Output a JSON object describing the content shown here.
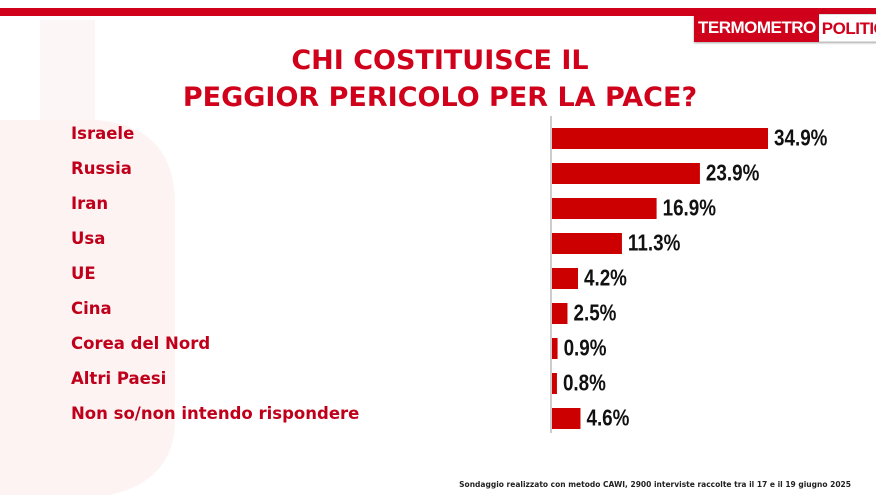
{
  "brand": {
    "part1": "TERMOMETRO",
    "part2": "POLITICO",
    "red": "#d0021b"
  },
  "chart_data": {
    "type": "bar",
    "orientation": "horizontal",
    "title_lines": [
      "CHI COSTITUISCE IL",
      "PEGGIOR PERICOLO PER LA PACE?"
    ],
    "categories": [
      "Israele",
      "Russia",
      "Iran",
      "Usa",
      "UE",
      "Cina",
      "Corea del Nord",
      "Altri Paesi",
      "Non so/non intendo rispondere"
    ],
    "values": [
      34.9,
      23.9,
      16.9,
      11.3,
      4.2,
      2.5,
      0.9,
      0.8,
      4.6
    ],
    "value_labels": [
      "34.9%",
      "23.9%",
      "16.9%",
      "11.3%",
      "4.2%",
      "2.5%",
      "0.9%",
      "0.8%",
      "4.6%"
    ],
    "unit": "%",
    "bar_color": "#cc0000",
    "xlim": [
      0,
      40
    ],
    "grid": false,
    "legend": "none"
  },
  "footnote": "Sondaggio realizzato con metodo CAWI, 2900 interviste raccolte tra il 17 e il 19 giugno 2025"
}
